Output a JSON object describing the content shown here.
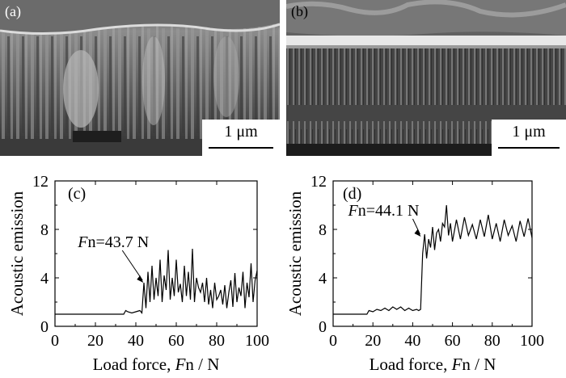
{
  "figure": {
    "panels": [
      {
        "label": "(a)",
        "scale_label": "1 μm"
      },
      {
        "label": "(b)",
        "scale_label": "1 μm"
      }
    ]
  },
  "chart_data": [
    {
      "type": "line",
      "panel_label": "(c)",
      "xlabel_prefix": "Load force, ",
      "xlabel_italic": "F",
      "xlabel_suffix": "n / N",
      "ylabel": "Acoustic emission",
      "xlim": [
        0,
        100
      ],
      "ylim": [
        0,
        12
      ],
      "xticks": [
        0,
        20,
        40,
        60,
        80,
        100
      ],
      "yticks": [
        0,
        4,
        8,
        12
      ],
      "annotation": {
        "italic": "F",
        "text": "n=43.7 N",
        "x": 43.7,
        "y": 3.6
      },
      "series": [
        {
          "x": [
            0,
            10,
            20,
            30,
            34,
            35,
            36,
            38,
            40,
            42,
            43,
            44,
            45,
            46,
            47,
            48,
            49,
            50,
            51,
            52,
            53,
            54,
            55,
            56,
            57,
            58,
            59,
            60,
            61,
            62,
            63,
            64,
            65,
            66,
            67,
            68,
            69,
            70,
            71,
            72,
            73,
            74,
            75,
            76,
            77,
            78,
            79,
            80,
            81,
            82,
            83,
            84,
            85,
            86,
            87,
            88,
            89,
            90,
            91,
            92,
            93,
            94,
            95,
            96,
            97,
            98,
            99,
            100
          ],
          "y": [
            1.0,
            1.0,
            1.0,
            1.0,
            1.0,
            1.3,
            1.2,
            1.1,
            1.2,
            1.3,
            1.1,
            3.6,
            1.5,
            4.5,
            2.0,
            5.0,
            2.2,
            4.0,
            2.5,
            5.5,
            2.0,
            4.2,
            3.0,
            6.3,
            2.2,
            4.0,
            2.5,
            5.5,
            2.8,
            3.5,
            2.0,
            5.0,
            2.5,
            4.5,
            2.2,
            6.4,
            2.0,
            4.0,
            3.2,
            2.8,
            3.6,
            2.0,
            4.0,
            1.8,
            3.0,
            1.5,
            3.6,
            2.2,
            2.5,
            3.0,
            1.8,
            3.4,
            1.5,
            2.8,
            3.8,
            1.6,
            4.4,
            2.0,
            3.2,
            2.5,
            4.5,
            1.5,
            3.6,
            2.4,
            5.2,
            2.0,
            3.8,
            4.6
          ]
        }
      ]
    },
    {
      "type": "line",
      "panel_label": "(d)",
      "xlabel_prefix": "Load force, ",
      "xlabel_italic": "F",
      "xlabel_suffix": "n / N",
      "ylabel": "Acoustic emission",
      "xlim": [
        0,
        100
      ],
      "ylim": [
        0,
        12
      ],
      "xticks": [
        0,
        20,
        40,
        60,
        80,
        100
      ],
      "yticks": [
        0,
        4,
        8,
        12
      ],
      "annotation": {
        "italic": "F",
        "text": "n=44.1 N",
        "x": 44.1,
        "y": 7.4
      },
      "series": [
        {
          "x": [
            0,
            10,
            17,
            18,
            20,
            22,
            24,
            26,
            28,
            30,
            32,
            34,
            36,
            38,
            40,
            42,
            43,
            44,
            45,
            46,
            47,
            48,
            49,
            50,
            51,
            52,
            53,
            54,
            55,
            56,
            57,
            58,
            59,
            60,
            62,
            64,
            66,
            68,
            70,
            72,
            74,
            76,
            78,
            80,
            82,
            84,
            86,
            88,
            90,
            92,
            94,
            96,
            98,
            100
          ],
          "y": [
            1.0,
            1.0,
            1.0,
            1.3,
            1.2,
            1.4,
            1.3,
            1.5,
            1.3,
            1.6,
            1.4,
            1.6,
            1.3,
            1.5,
            1.3,
            1.4,
            1.3,
            1.4,
            6.0,
            7.6,
            5.6,
            7.2,
            6.5,
            8.2,
            6.3,
            7.7,
            8.0,
            7.0,
            8.5,
            8.2,
            10.0,
            7.5,
            8.5,
            7.0,
            8.8,
            7.2,
            9.0,
            7.5,
            8.4,
            7.2,
            8.8,
            7.4,
            9.2,
            7.2,
            8.5,
            7.0,
            8.8,
            7.5,
            8.3,
            7.0,
            8.7,
            7.4,
            8.9,
            7.3
          ]
        }
      ]
    }
  ]
}
